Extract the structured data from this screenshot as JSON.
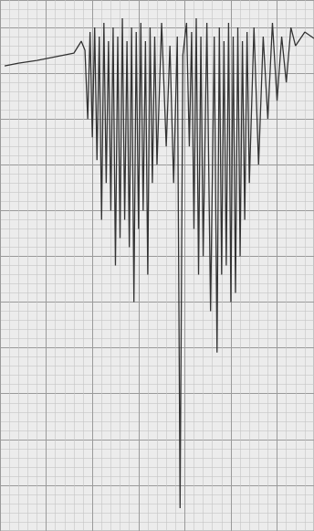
{
  "chart_data": {
    "type": "line",
    "color": "#333333",
    "grid": true,
    "tick_labels": false,
    "xlim": [
      0,
      34
    ],
    "ylim": [
      0,
      58
    ],
    "xticks": [
      0,
      5,
      10,
      15,
      20,
      25,
      30
    ],
    "yticks": [
      0,
      5,
      10,
      15,
      20,
      25,
      30,
      35,
      40,
      45,
      50,
      55
    ],
    "x": [
      0.5,
      2,
      4,
      6,
      8,
      8.8,
      9.2,
      9.5,
      9.75,
      10,
      10.25,
      10.5,
      10.75,
      11,
      11.25,
      11.5,
      11.75,
      12,
      12.25,
      12.5,
      12.75,
      13,
      13.25,
      13.5,
      13.75,
      14,
      14.25,
      14.5,
      14.75,
      15,
      15.25,
      15.5,
      15.75,
      16,
      16.25,
      16.5,
      16.75,
      17,
      17.5,
      18,
      18.4,
      18.8,
      19.2,
      19.5,
      19.8,
      20.2,
      20.5,
      20.75,
      21,
      21.25,
      21.5,
      21.75,
      22,
      22.4,
      22.8,
      23.2,
      23.5,
      23.75,
      24,
      24.25,
      24.5,
      24.75,
      25,
      25.25,
      25.5,
      25.75,
      26,
      26.25,
      26.5,
      26.75,
      27,
      27.5,
      28,
      28.5,
      29,
      29.5,
      30,
      30.5,
      31,
      31.5,
      32,
      33,
      34
    ],
    "values": [
      50.8,
      51.1,
      51.4,
      51.8,
      52.2,
      53.5,
      52.5,
      45,
      54.5,
      43,
      55,
      40.5,
      54,
      34,
      55.5,
      38,
      53.5,
      35,
      55,
      29,
      54,
      32,
      56,
      34,
      53.5,
      31,
      55,
      25,
      54.5,
      33,
      55.5,
      35,
      53.5,
      28,
      55,
      38,
      54,
      40,
      55.5,
      42,
      53,
      38,
      54,
      2.5,
      52,
      55.5,
      42,
      54.5,
      33,
      56,
      28,
      54,
      30,
      55.5,
      24,
      54,
      19.5,
      55,
      28,
      53.5,
      29,
      55.5,
      25,
      54,
      26,
      55,
      30,
      53.5,
      34,
      54.5,
      38,
      55,
      40,
      54,
      45,
      55.5,
      47,
      54,
      49,
      55,
      53,
      54.5,
      53.8
    ]
  }
}
